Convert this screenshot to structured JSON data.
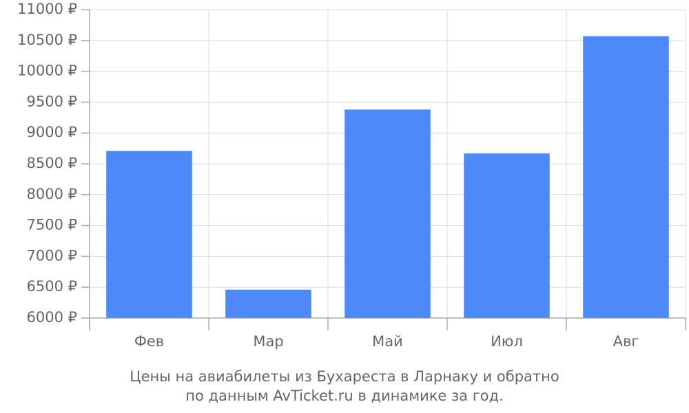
{
  "chart_data": {
    "type": "bar",
    "title": [
      "Цены на авиабилеты из Бухареста в Ларнаку и обратно",
      "по данным AvTicket.ru в динамике за год."
    ],
    "categories": [
      "Фев",
      "Мар",
      "Май",
      "Июл",
      "Авг"
    ],
    "values": [
      8710,
      6460,
      9380,
      8670,
      10570
    ],
    "color": "#4d89f9",
    "ylim": [
      6000,
      11000
    ],
    "yticks": [
      {
        "value": 6000,
        "label": "6000 ₽"
      },
      {
        "value": 6500,
        "label": "6500 ₽"
      },
      {
        "value": 7000,
        "label": "7000 ₽"
      },
      {
        "value": 7500,
        "label": "7500 ₽"
      },
      {
        "value": 8000,
        "label": "8000 ₽"
      },
      {
        "value": 8500,
        "label": "8500 ₽"
      },
      {
        "value": 9000,
        "label": "9000 ₽"
      },
      {
        "value": 9500,
        "label": "9500 ₽"
      },
      {
        "value": 10000,
        "label": "10000 ₽"
      },
      {
        "value": 10500,
        "label": "10500 ₽"
      },
      {
        "value": 11000,
        "label": "11000 ₽"
      }
    ],
    "grid": true
  }
}
